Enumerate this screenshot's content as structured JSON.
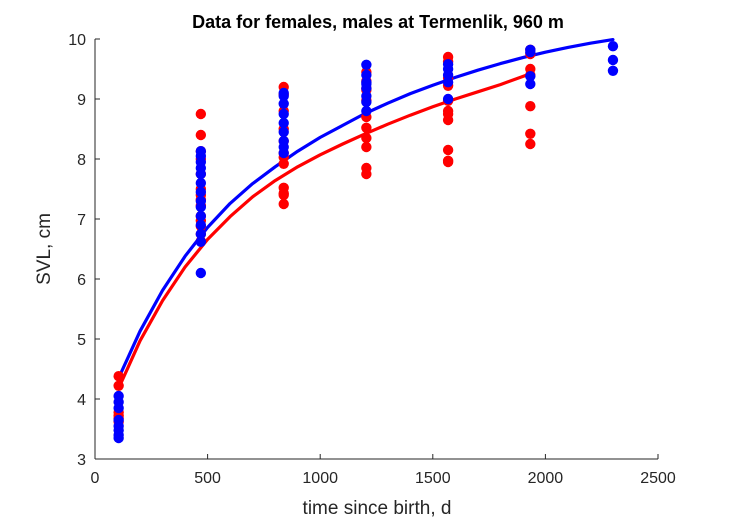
{
  "chart_data": {
    "type": "scatter",
    "title": "Data for females, males at Termenlik, 960 m",
    "xlabel": "time since birth, d",
    "ylabel": "SVL, cm",
    "xlim": [
      0,
      2500
    ],
    "ylim": [
      3,
      10
    ],
    "xticks": [
      0,
      500,
      1000,
      1500,
      2000,
      2500
    ],
    "yticks": [
      3,
      4,
      5,
      6,
      7,
      8,
      9,
      10
    ],
    "grid": false,
    "colors": {
      "females": "#ff0000",
      "males": "#0000ff",
      "axis": "#262626"
    },
    "series": [
      {
        "color": "#ff0000",
        "kind": "points",
        "x": [
          105,
          105,
          105,
          105,
          105,
          105,
          470,
          470,
          470,
          470,
          470,
          470,
          470,
          470,
          470,
          470,
          470,
          470,
          470,
          470,
          838,
          838,
          838,
          838,
          838,
          838,
          838,
          838,
          838,
          838,
          838,
          838,
          1205,
          1205,
          1205,
          1205,
          1205,
          1205,
          1205,
          1205,
          1205,
          1205,
          1205,
          1568,
          1568,
          1568,
          1568,
          1568,
          1568,
          1568,
          1568,
          1568,
          1568,
          1568,
          1933,
          1933,
          1933,
          1933,
          1933,
          1933,
          1933
        ],
        "y": [
          4.38,
          4.22,
          3.78,
          3.72,
          3.68,
          3.62,
          8.75,
          8.4,
          8.13,
          8.0,
          7.75,
          7.5,
          7.4,
          7.32,
          7.22,
          7.05,
          6.97,
          6.88,
          6.75,
          6.63,
          9.2,
          9.08,
          8.8,
          8.5,
          8.3,
          8.1,
          8.03,
          7.92,
          7.52,
          7.43,
          7.4,
          7.25,
          9.45,
          9.3,
          9.18,
          9.15,
          8.98,
          8.7,
          8.52,
          8.35,
          8.2,
          7.85,
          7.75,
          9.7,
          9.62,
          9.35,
          9.22,
          8.97,
          8.8,
          8.75,
          8.65,
          8.15,
          7.97,
          7.95,
          9.82,
          9.5,
          9.4,
          8.88,
          8.42,
          8.25,
          9.75
        ]
      },
      {
        "color": "#0000ff",
        "kind": "points",
        "x": [
          105,
          105,
          105,
          105,
          105,
          105,
          105,
          105,
          470,
          470,
          470,
          470,
          470,
          470,
          470,
          470,
          470,
          470,
          470,
          470,
          470,
          470,
          838,
          838,
          838,
          838,
          838,
          838,
          838,
          838,
          838,
          1205,
          1205,
          1205,
          1205,
          1205,
          1205,
          1205,
          1205,
          1568,
          1568,
          1568,
          1568,
          1568,
          1933,
          1933,
          1933,
          1933,
          2300,
          2300,
          2300
        ],
        "y": [
          4.05,
          3.95,
          3.85,
          3.65,
          3.55,
          3.48,
          3.4,
          3.35,
          8.13,
          8.05,
          7.95,
          7.85,
          7.75,
          7.6,
          7.45,
          7.3,
          7.2,
          7.05,
          6.9,
          6.75,
          6.62,
          6.1,
          9.1,
          8.92,
          8.75,
          8.6,
          8.45,
          8.3,
          8.2,
          8.1,
          9.05,
          9.57,
          9.4,
          9.28,
          9.25,
          9.18,
          9.05,
          8.95,
          8.8,
          9.58,
          9.5,
          9.4,
          9.28,
          9.0,
          9.82,
          9.78,
          9.38,
          9.25,
          9.88,
          9.65,
          9.47
        ]
      },
      {
        "color": "#ff0000",
        "kind": "curve",
        "x": [
          105,
          200,
          300,
          400,
          500,
          600,
          700,
          800,
          900,
          1000,
          1100,
          1200,
          1300,
          1400,
          1500,
          1600,
          1700,
          1800,
          1933
        ],
        "y": [
          4.18,
          4.97,
          5.64,
          6.2,
          6.66,
          7.04,
          7.37,
          7.64,
          7.87,
          8.07,
          8.25,
          8.42,
          8.58,
          8.73,
          8.87,
          9.0,
          9.12,
          9.24,
          9.42
        ]
      },
      {
        "color": "#0000ff",
        "kind": "curve",
        "x": [
          105,
          200,
          300,
          400,
          500,
          600,
          700,
          800,
          900,
          1000,
          1100,
          1200,
          1300,
          1400,
          1500,
          1600,
          1700,
          1800,
          1900,
          2000,
          2100,
          2200,
          2300
        ],
        "y": [
          4.35,
          5.13,
          5.81,
          6.38,
          6.86,
          7.26,
          7.59,
          7.87,
          8.13,
          8.36,
          8.56,
          8.76,
          8.93,
          9.09,
          9.23,
          9.36,
          9.48,
          9.59,
          9.69,
          9.78,
          9.86,
          9.93,
          9.99
        ]
      }
    ]
  }
}
